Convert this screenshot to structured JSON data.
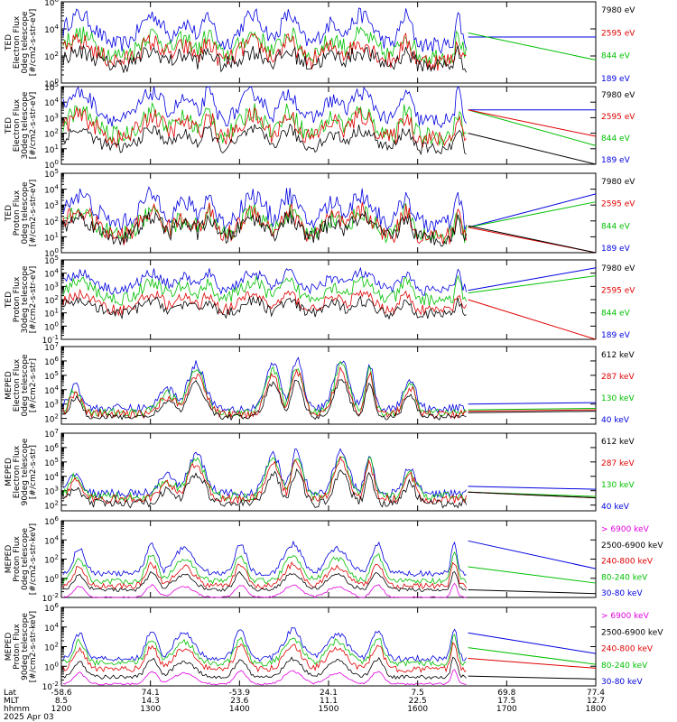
{
  "chart_data": [
    {
      "type": "line",
      "ylabel": [
        "TED",
        "Electron Flux",
        "0deg telescope",
        "[#/cm2-s-str-eV]"
      ],
      "yticks": [
        {
          "label": "10^6",
          "y": 6
        },
        {
          "label": "10^4",
          "y": 4
        },
        {
          "label": "10^2",
          "y": 2
        },
        {
          "label": "10^0",
          "y": 0
        }
      ],
      "ylim": [
        0,
        6
      ],
      "legend": [
        {
          "label": "7980 eV",
          "color": "#000000"
        },
        {
          "label": "2595 eV",
          "color": "#e00000"
        },
        {
          "label": "844 eV",
          "color": "#00c000"
        },
        {
          "label": "189 eV",
          "color": "#0000e0"
        }
      ],
      "series": [
        {
          "name": "189 eV",
          "color": "#0000e0",
          "style": "noisy",
          "base": 2.8,
          "amp": 2.2,
          "noise": 0.6,
          "tail": [
            3.4,
            3.4
          ]
        },
        {
          "name": "844 eV",
          "color": "#00c000",
          "style": "noisy",
          "base": 2.0,
          "amp": 1.6,
          "noise": 0.7,
          "tail": [
            3.7,
            1.7
          ]
        },
        {
          "name": "2595 eV",
          "color": "#e00000",
          "style": "noisy",
          "base": 1.6,
          "amp": 1.4,
          "noise": 0.7,
          "tail": null
        },
        {
          "name": "7980 eV",
          "color": "#000000",
          "style": "noisy",
          "base": 1.3,
          "amp": 1.0,
          "noise": 0.6,
          "tail": null
        }
      ]
    },
    {
      "type": "line",
      "ylabel": [
        "TED",
        "Electron Flux",
        "30deg telescope",
        "[#/cm2-s-str-eV]"
      ],
      "yticks": [
        {
          "label": "10^5",
          "y": 5
        },
        {
          "label": "10^4",
          "y": 4
        },
        {
          "label": "10^3",
          "y": 3
        },
        {
          "label": "10^2",
          "y": 2
        },
        {
          "label": "10^1",
          "y": 1
        },
        {
          "label": "10^0",
          "y": 0
        }
      ],
      "ylim": [
        0,
        5
      ],
      "legend": [
        {
          "label": "7980 eV",
          "color": "#000000"
        },
        {
          "label": "2595 eV",
          "color": "#e00000"
        },
        {
          "label": "844 eV",
          "color": "#00c000"
        },
        {
          "label": "189 eV",
          "color": "#0000e0"
        }
      ],
      "series": [
        {
          "name": "189 eV",
          "color": "#0000e0",
          "style": "noisy",
          "base": 2.8,
          "amp": 1.8,
          "noise": 0.5,
          "tail": [
            3.5,
            3.5
          ]
        },
        {
          "name": "844 eV",
          "color": "#00c000",
          "style": "noisy",
          "base": 1.8,
          "amp": 1.6,
          "noise": 0.6,
          "tail": [
            3.5,
            1.2
          ]
        },
        {
          "name": "2595 eV",
          "color": "#e00000",
          "style": "noisy",
          "base": 1.6,
          "amp": 1.5,
          "noise": 0.6,
          "tail": [
            3.5,
            1.8
          ]
        },
        {
          "name": "7980 eV",
          "color": "#000000",
          "style": "noisy",
          "base": 1.0,
          "amp": 1.2,
          "noise": 0.4,
          "tail": [
            2.0,
            0.0
          ]
        }
      ]
    },
    {
      "type": "line",
      "ylabel": [
        "TED",
        "Proton Flux",
        "0deg telescope",
        "[#/cm2-s-str-eV]"
      ],
      "yticks": [
        {
          "label": "10^5",
          "y": 5
        },
        {
          "label": "10^4",
          "y": 4
        },
        {
          "label": "10^3",
          "y": 3
        },
        {
          "label": "10^2",
          "y": 2
        },
        {
          "label": "10^1",
          "y": 1
        },
        {
          "label": "10^0",
          "y": 0
        }
      ],
      "ylim": [
        0,
        5
      ],
      "legend": [
        {
          "label": "7980 eV",
          "color": "#000000"
        },
        {
          "label": "2595 eV",
          "color": "#e00000"
        },
        {
          "label": "844 eV",
          "color": "#00c000"
        },
        {
          "label": "189 eV",
          "color": "#0000e0"
        }
      ],
      "series": [
        {
          "name": "189 eV",
          "color": "#0000e0",
          "style": "noisy",
          "base": 1.8,
          "amp": 1.8,
          "noise": 0.6,
          "tail": [
            1.6,
            3.7
          ]
        },
        {
          "name": "844 eV",
          "color": "#00c000",
          "style": "noisy",
          "base": 1.1,
          "amp": 1.4,
          "noise": 0.6,
          "tail": [
            1.6,
            3.2
          ]
        },
        {
          "name": "2595 eV",
          "color": "#e00000",
          "style": "noisy",
          "base": 1.0,
          "amp": 1.6,
          "noise": 0.6,
          "tail": [
            1.6,
            0.0
          ]
        },
        {
          "name": "7980 eV",
          "color": "#000000",
          "style": "noisy",
          "base": 0.9,
          "amp": 1.3,
          "noise": 0.5,
          "tail": [
            1.7,
            0.0
          ]
        }
      ]
    },
    {
      "type": "line",
      "ylabel": [
        "TED",
        "Proton Flux",
        "30deg telescope",
        "[#/cm2-s-str-eV]"
      ],
      "yticks": [
        {
          "label": "10^5",
          "y": 5
        },
        {
          "label": "10^4",
          "y": 4
        },
        {
          "label": "10^3",
          "y": 3
        },
        {
          "label": "10^2",
          "y": 2
        },
        {
          "label": "10^1",
          "y": 1
        },
        {
          "label": "10^0",
          "y": 0
        },
        {
          "label": "10^-1",
          "y": -1
        }
      ],
      "ylim": [
        -1,
        5
      ],
      "legend": [
        {
          "label": "7980 eV",
          "color": "#000000"
        },
        {
          "label": "2595 eV",
          "color": "#e00000"
        },
        {
          "label": "844 eV",
          "color": "#00c000"
        },
        {
          "label": "189 eV",
          "color": "#0000e0"
        }
      ],
      "series": [
        {
          "name": "189 eV",
          "color": "#0000e0",
          "style": "noisy",
          "base": 2.7,
          "amp": 1.3,
          "noise": 0.4,
          "tail": [
            2.7,
            4.4
          ]
        },
        {
          "name": "844 eV",
          "color": "#00c000",
          "style": "noisy",
          "base": 2.0,
          "amp": 1.3,
          "noise": 0.5,
          "tail": [
            2.5,
            3.8
          ]
        },
        {
          "name": "2595 eV",
          "color": "#e00000",
          "style": "noisy",
          "base": 1.2,
          "amp": 1.2,
          "noise": 0.4,
          "tail": [
            2.0,
            -1.0
          ]
        },
        {
          "name": "7980 eV",
          "color": "#000000",
          "style": "noisy",
          "base": 0.9,
          "amp": 1.0,
          "noise": 0.4,
          "tail": null
        }
      ]
    },
    {
      "type": "line",
      "ylabel": [
        "MEPED",
        "Electron Flux",
        "0deg telescope",
        "[#/cm2-s-str]"
      ],
      "yticks": [
        {
          "label": "10^7",
          "y": 7
        },
        {
          "label": "10^6",
          "y": 6
        },
        {
          "label": "10^5",
          "y": 5
        },
        {
          "label": "10^4",
          "y": 4
        },
        {
          "label": "10^3",
          "y": 3
        },
        {
          "label": "10^2",
          "y": 2
        }
      ],
      "ylim": [
        1.6,
        7
      ],
      "legend": [
        {
          "label": "612 keV",
          "color": "#000000"
        },
        {
          "label": "287 keV",
          "color": "#e00000"
        },
        {
          "label": "130 keV",
          "color": "#00c000"
        },
        {
          "label": "40 keV",
          "color": "#0000e0"
        }
      ],
      "series": [
        {
          "name": "40 keV",
          "color": "#0000e0",
          "style": "peaked",
          "base": 2.7,
          "amp": 3.4,
          "noise": 0.3,
          "tail": [
            3.0,
            3.1
          ]
        },
        {
          "name": "130 keV",
          "color": "#00c000",
          "style": "peaked",
          "base": 2.4,
          "amp": 3.3,
          "noise": 0.3,
          "tail": [
            2.6,
            2.7
          ]
        },
        {
          "name": "287 keV",
          "color": "#e00000",
          "style": "peaked",
          "base": 2.3,
          "amp": 3.0,
          "noise": 0.3,
          "tail": [
            2.5,
            2.6
          ]
        },
        {
          "name": "612 keV",
          "color": "#000000",
          "style": "peaked",
          "base": 2.1,
          "amp": 2.6,
          "noise": 0.2,
          "tail": [
            2.4,
            2.5
          ]
        }
      ]
    },
    {
      "type": "line",
      "ylabel": [
        "MEPED",
        "Electron Flux",
        "90deg telescope",
        "[#/cm2-s-str]"
      ],
      "yticks": [
        {
          "label": "10^7",
          "y": 7
        },
        {
          "label": "10^6",
          "y": 6
        },
        {
          "label": "10^5",
          "y": 5
        },
        {
          "label": "10^4",
          "y": 4
        },
        {
          "label": "10^3",
          "y": 3
        },
        {
          "label": "10^2",
          "y": 2
        }
      ],
      "ylim": [
        1.6,
        7
      ],
      "legend": [
        {
          "label": "612 keV",
          "color": "#000000"
        },
        {
          "label": "287 keV",
          "color": "#e00000"
        },
        {
          "label": "130 keV",
          "color": "#00c000"
        },
        {
          "label": "40 keV",
          "color": "#0000e0"
        }
      ],
      "series": [
        {
          "name": "40 keV",
          "color": "#0000e0",
          "style": "peaked",
          "base": 2.8,
          "amp": 3.0,
          "noise": 0.3,
          "tail": [
            3.3,
            3.1
          ]
        },
        {
          "name": "130 keV",
          "color": "#00c000",
          "style": "peaked",
          "base": 2.6,
          "amp": 2.8,
          "noise": 0.3,
          "tail": [
            2.9,
            2.6
          ]
        },
        {
          "name": "287 keV",
          "color": "#e00000",
          "style": "peaked",
          "base": 2.4,
          "amp": 2.7,
          "noise": 0.3,
          "tail": [
            2.9,
            2.5
          ]
        },
        {
          "name": "612 keV",
          "color": "#000000",
          "style": "peaked",
          "base": 2.1,
          "amp": 2.3,
          "noise": 0.3,
          "tail": [
            2.9,
            2.5
          ]
        }
      ]
    },
    {
      "type": "line",
      "ylabel": [
        "MEPED",
        "Proton Flux",
        "0deg telescope",
        "[#/cm2-s-str-keV]"
      ],
      "yticks": [
        {
          "label": "10^6",
          "y": 6
        },
        {
          "label": "10^4",
          "y": 4
        },
        {
          "label": "10^2",
          "y": 2
        },
        {
          "label": "10^0",
          "y": 0
        },
        {
          "label": "10^-2",
          "y": -2
        }
      ],
      "ylim": [
        -2,
        6
      ],
      "legend": [
        {
          "label": "> 6900 keV",
          "color": "#e000e0"
        },
        {
          "label": "2500-6900 keV",
          "color": "#000000"
        },
        {
          "label": "240-800 keV",
          "color": "#e00000"
        },
        {
          "label": "80-240 keV",
          "color": "#00c000"
        },
        {
          "label": "30-80 keV",
          "color": "#0000e0"
        }
      ],
      "series": [
        {
          "name": "30-80 keV",
          "color": "#0000e0",
          "style": "hump",
          "base": 0.5,
          "amp": 3.8,
          "noise": 0.3,
          "tail": [
            3.9,
            1.0
          ]
        },
        {
          "name": "80-240 keV",
          "color": "#00c000",
          "style": "hump",
          "base": -0.3,
          "amp": 3.4,
          "noise": 0.3,
          "tail": [
            1.2,
            -0.5
          ]
        },
        {
          "name": "240-800 keV",
          "color": "#e00000",
          "style": "hump",
          "base": -0.8,
          "amp": 2.8,
          "noise": 0.3,
          "tail": null
        },
        {
          "name": "2500-6900 keV",
          "color": "#000000",
          "style": "hump",
          "base": -1.2,
          "amp": 2.2,
          "noise": 0.2,
          "tail": [
            -1.2,
            -1.6
          ]
        },
        {
          "name": "> 6900 keV",
          "color": "#e000e0",
          "style": "hump",
          "base": -2.0,
          "amp": 1.6,
          "noise": 0.1,
          "tail": null
        }
      ]
    },
    {
      "type": "line",
      "ylabel": [
        "MEPED",
        "Proton Flux",
        "90deg telescope",
        "[#/cm2-s-str-keV]"
      ],
      "yticks": [
        {
          "label": "10^6",
          "y": 6
        },
        {
          "label": "10^4",
          "y": 4
        },
        {
          "label": "10^2",
          "y": 2
        },
        {
          "label": "10^0",
          "y": 0
        },
        {
          "label": "10^-2",
          "y": -2
        }
      ],
      "ylim": [
        -2,
        6
      ],
      "legend": [
        {
          "label": "> 6900 keV",
          "color": "#e000e0"
        },
        {
          "label": "2500-6900 keV",
          "color": "#000000"
        },
        {
          "label": "240-800 keV",
          "color": "#e00000"
        },
        {
          "label": "80-240 keV",
          "color": "#00c000"
        },
        {
          "label": "30-80 keV",
          "color": "#0000e0"
        }
      ],
      "series": [
        {
          "name": "30-80 keV",
          "color": "#0000e0",
          "style": "hump",
          "base": 0.8,
          "amp": 3.6,
          "noise": 0.3,
          "tail": [
            3.4,
            1.3
          ]
        },
        {
          "name": "80-240 keV",
          "color": "#00c000",
          "style": "hump",
          "base": 0.3,
          "amp": 3.2,
          "noise": 0.3,
          "tail": [
            1.9,
            0.2
          ]
        },
        {
          "name": "240-800 keV",
          "color": "#e00000",
          "style": "hump",
          "base": -0.3,
          "amp": 3.0,
          "noise": 0.3,
          "tail": [
            0.8,
            -0.2
          ]
        },
        {
          "name": "2500-6900 keV",
          "color": "#000000",
          "style": "hump",
          "base": -1.1,
          "amp": 2.3,
          "noise": 0.2,
          "tail": [
            -1.0,
            -1.3
          ]
        },
        {
          "name": "> 6900 keV",
          "color": "#e000e0",
          "style": "hump",
          "base": -1.8,
          "amp": 1.6,
          "noise": 0.1,
          "tail": null
        }
      ]
    }
  ],
  "x_axis": {
    "row_labels": [
      "Lat",
      "MLT",
      "hhmm"
    ],
    "ticks": [
      {
        "lat": "-58.6",
        "mlt": "8.5",
        "hhmm": "1200"
      },
      {
        "lat": "74.1",
        "mlt": "14.3",
        "hhmm": "1300"
      },
      {
        "lat": "-53.9",
        "mlt": "23.6",
        "hhmm": "1400"
      },
      {
        "lat": "24.1",
        "mlt": "11.1",
        "hhmm": "1500"
      },
      {
        "lat": "7.5",
        "mlt": "22.5",
        "hhmm": "1600"
      },
      {
        "lat": "69.8",
        "mlt": "17.5",
        "hhmm": "1700"
      },
      {
        "lat": "77.4",
        "mlt": "12.7",
        "hhmm": "1800"
      }
    ],
    "hhmm_range": [
      1200,
      1800
    ],
    "data_end": 1634,
    "date": "2025 Apr 03"
  }
}
